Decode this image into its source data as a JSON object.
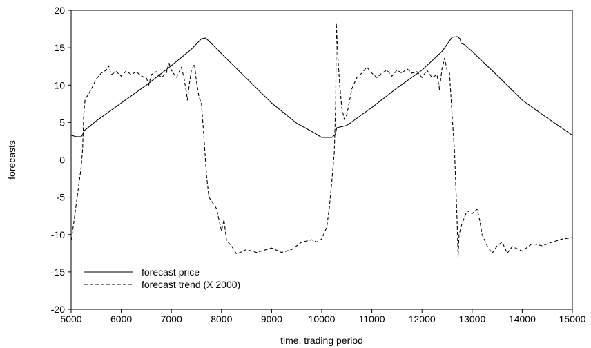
{
  "chart_data": {
    "type": "line",
    "title": "",
    "xlabel": "time, trading period",
    "ylabel": "forecasts",
    "xlim": [
      5000,
      15000
    ],
    "ylim": [
      -20,
      20
    ],
    "x_ticks": [
      5000,
      6000,
      7000,
      8000,
      9000,
      10000,
      11000,
      12000,
      13000,
      14000,
      15000
    ],
    "y_ticks": [
      -20,
      -15,
      -10,
      -5,
      0,
      5,
      10,
      15,
      20
    ],
    "zero_line": true,
    "grid": false,
    "legend_position": "bottom-left",
    "series": [
      {
        "name": "forecast price",
        "style": "solid",
        "color": "#000000",
        "points": [
          [
            5000,
            3.3
          ],
          [
            5100,
            3.1
          ],
          [
            5200,
            3.1
          ],
          [
            5230,
            3.4
          ],
          [
            5260,
            3.9
          ],
          [
            5500,
            5.2
          ],
          [
            6000,
            7.6
          ],
          [
            6500,
            10.0
          ],
          [
            7000,
            12.6
          ],
          [
            7400,
            14.8
          ],
          [
            7600,
            16.2
          ],
          [
            7680,
            16.3
          ],
          [
            7750,
            15.9
          ],
          [
            8000,
            14.2
          ],
          [
            8500,
            10.9
          ],
          [
            9000,
            7.6
          ],
          [
            9500,
            4.9
          ],
          [
            9800,
            3.8
          ],
          [
            10000,
            3.0
          ],
          [
            10200,
            3.0
          ],
          [
            10270,
            3.4
          ],
          [
            10300,
            4.3
          ],
          [
            10500,
            4.6
          ],
          [
            11000,
            7.0
          ],
          [
            11500,
            9.6
          ],
          [
            12000,
            12.0
          ],
          [
            12400,
            14.5
          ],
          [
            12600,
            16.4
          ],
          [
            12700,
            16.5
          ],
          [
            12760,
            16.2
          ],
          [
            12780,
            15.6
          ],
          [
            12850,
            15.4
          ],
          [
            13000,
            14.5
          ],
          [
            13500,
            11.3
          ],
          [
            14000,
            8.0
          ],
          [
            14500,
            5.6
          ],
          [
            15000,
            3.3
          ]
        ]
      },
      {
        "name": "forecast trend (X 2000)",
        "style": "dashed",
        "color": "#000000",
        "points": [
          [
            5000,
            -10.8
          ],
          [
            5050,
            -8.6
          ],
          [
            5100,
            -6.0
          ],
          [
            5150,
            -3.5
          ],
          [
            5200,
            -1.0
          ],
          [
            5230,
            1.5
          ],
          [
            5250,
            6.0
          ],
          [
            5280,
            8.2
          ],
          [
            5320,
            8.5
          ],
          [
            5400,
            9.4
          ],
          [
            5500,
            10.8
          ],
          [
            5600,
            11.6
          ],
          [
            5700,
            12.0
          ],
          [
            5750,
            12.6
          ],
          [
            5800,
            11.4
          ],
          [
            5900,
            11.8
          ],
          [
            6000,
            11.2
          ],
          [
            6100,
            11.9
          ],
          [
            6200,
            11.4
          ],
          [
            6300,
            11.8
          ],
          [
            6400,
            11.2
          ],
          [
            6500,
            11.0
          ],
          [
            6550,
            10.0
          ],
          [
            6600,
            11.4
          ],
          [
            6700,
            11.8
          ],
          [
            6800,
            11.0
          ],
          [
            6900,
            11.6
          ],
          [
            6950,
            13.0
          ],
          [
            7000,
            12.0
          ],
          [
            7100,
            11.0
          ],
          [
            7200,
            12.4
          ],
          [
            7250,
            11.0
          ],
          [
            7300,
            9.0
          ],
          [
            7320,
            8.0
          ],
          [
            7360,
            10.2
          ],
          [
            7400,
            12.0
          ],
          [
            7460,
            12.8
          ],
          [
            7500,
            10.5
          ],
          [
            7550,
            8.5
          ],
          [
            7600,
            7.5
          ],
          [
            7650,
            3.0
          ],
          [
            7700,
            -2.0
          ],
          [
            7750,
            -5.0
          ],
          [
            7800,
            -5.5
          ],
          [
            7900,
            -6.5
          ],
          [
            8000,
            -9.5
          ],
          [
            8050,
            -8.0
          ],
          [
            8100,
            -10.8
          ],
          [
            8200,
            -11.5
          ],
          [
            8300,
            -12.6
          ],
          [
            8500,
            -12.0
          ],
          [
            8700,
            -12.4
          ],
          [
            9000,
            -11.8
          ],
          [
            9200,
            -12.4
          ],
          [
            9400,
            -12.0
          ],
          [
            9600,
            -11.0
          ],
          [
            9800,
            -10.7
          ],
          [
            9900,
            -11.0
          ],
          [
            10000,
            -10.6
          ],
          [
            10100,
            -9.0
          ],
          [
            10150,
            -6.5
          ],
          [
            10200,
            -3.0
          ],
          [
            10250,
            1.0
          ],
          [
            10280,
            8.0
          ],
          [
            10290,
            18.3
          ],
          [
            10320,
            14.0
          ],
          [
            10360,
            10.0
          ],
          [
            10400,
            7.0
          ],
          [
            10450,
            5.4
          ],
          [
            10500,
            6.0
          ],
          [
            10600,
            9.5
          ],
          [
            10700,
            11.0
          ],
          [
            10800,
            11.6
          ],
          [
            10900,
            12.4
          ],
          [
            11000,
            11.6
          ],
          [
            11100,
            11.0
          ],
          [
            11200,
            11.6
          ],
          [
            11300,
            12.0
          ],
          [
            11400,
            11.2
          ],
          [
            11500,
            12.0
          ],
          [
            11600,
            11.6
          ],
          [
            11700,
            12.2
          ],
          [
            11800,
            11.6
          ],
          [
            11900,
            11.8
          ],
          [
            12000,
            11.0
          ],
          [
            12100,
            12.0
          ],
          [
            12200,
            11.0
          ],
          [
            12300,
            11.4
          ],
          [
            12350,
            9.4
          ],
          [
            12400,
            12.2
          ],
          [
            12450,
            13.6
          ],
          [
            12500,
            12.0
          ],
          [
            12550,
            11.6
          ],
          [
            12600,
            6.0
          ],
          [
            12650,
            1.0
          ],
          [
            12700,
            -8.0
          ],
          [
            12720,
            -13.0
          ],
          [
            12740,
            -10.0
          ],
          [
            12800,
            -8.5
          ],
          [
            12900,
            -6.8
          ],
          [
            13000,
            -7.2
          ],
          [
            13100,
            -6.6
          ],
          [
            13150,
            -8.0
          ],
          [
            13200,
            -10.0
          ],
          [
            13300,
            -11.5
          ],
          [
            13400,
            -12.5
          ],
          [
            13500,
            -11.5
          ],
          [
            13600,
            -11.0
          ],
          [
            13700,
            -12.5
          ],
          [
            13800,
            -11.6
          ],
          [
            14000,
            -12.2
          ],
          [
            14200,
            -11.2
          ],
          [
            14400,
            -11.5
          ],
          [
            14600,
            -11.0
          ],
          [
            14800,
            -10.6
          ],
          [
            15000,
            -10.4
          ]
        ]
      }
    ]
  }
}
